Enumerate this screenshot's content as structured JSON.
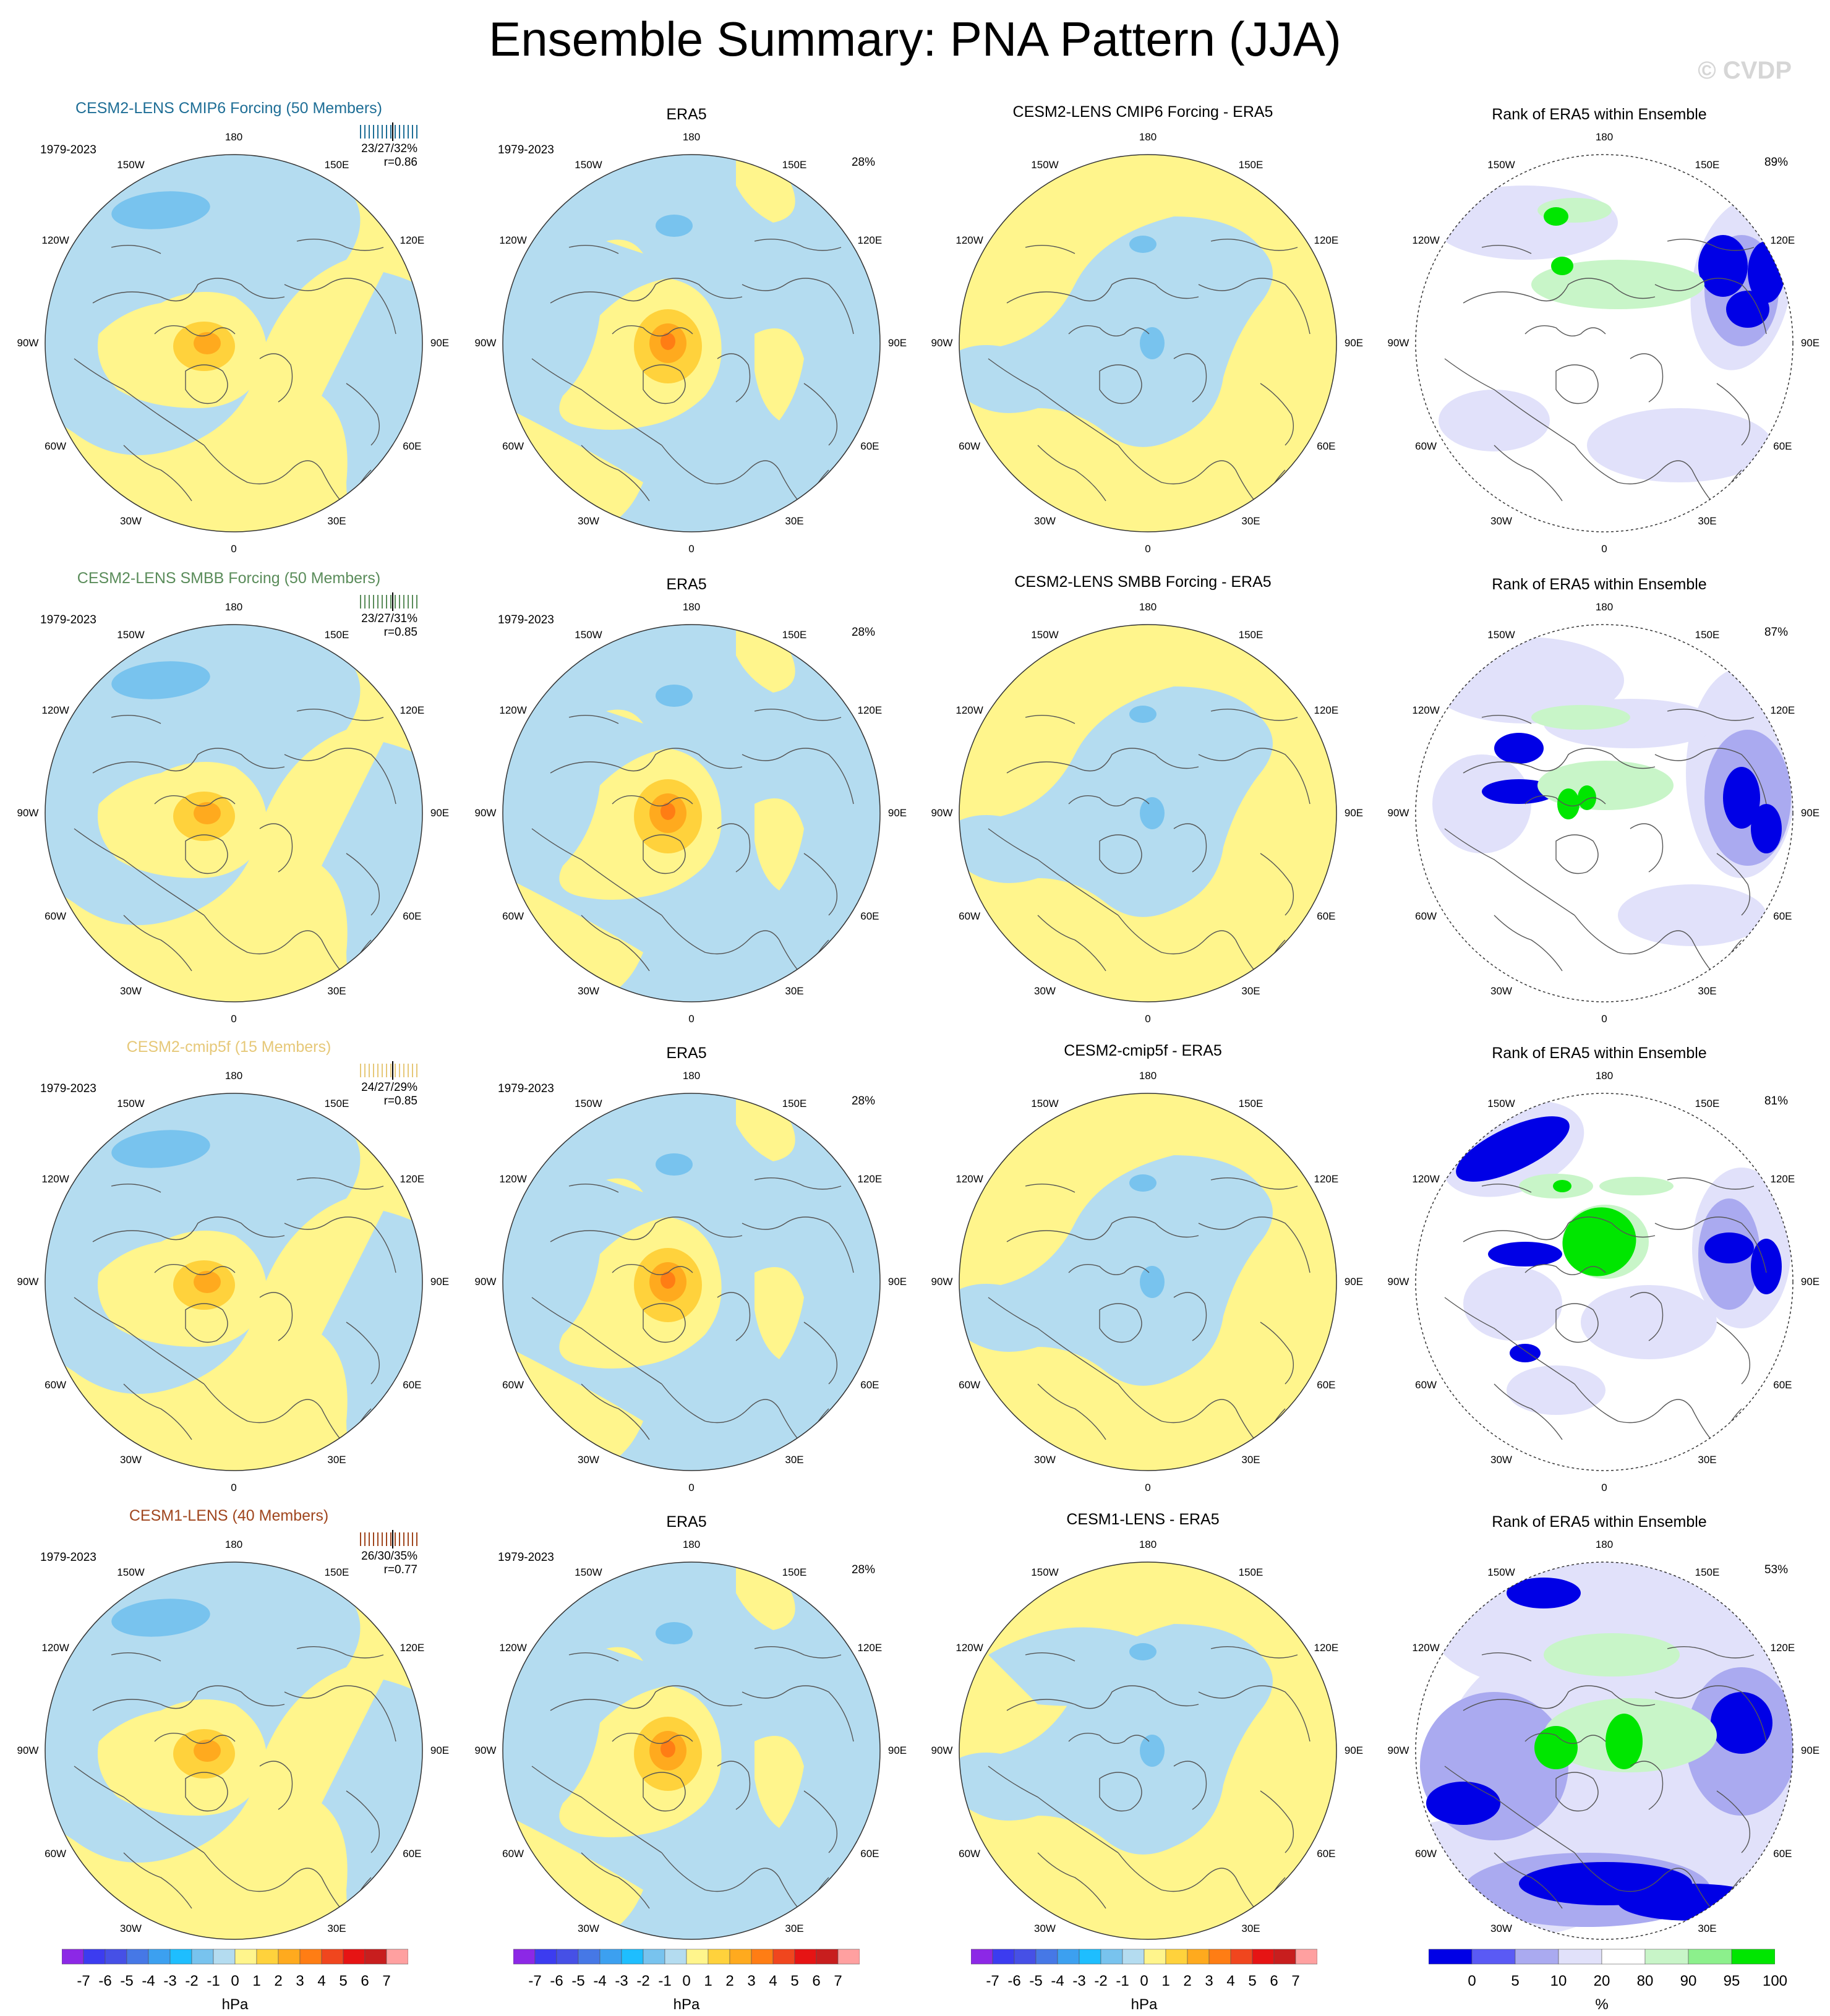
{
  "title": "Ensemble Summary: PNA Pattern (JJA)",
  "watermark": "© CVDP",
  "colors": {
    "yellow": "#fff58c",
    "lightblue": "#b4dcf0",
    "blue": "#78c3ee",
    "orange1": "#ffd23c",
    "orange2": "#ffaa1e",
    "orange3": "#ff7d14",
    "rank_white": "#ffffff",
    "rank_lav1": "#e1e1fa",
    "rank_lav2": "#aaaaf0",
    "rank_blue1": "#5a5af5",
    "rank_blue2": "#0000e6",
    "rank_green1": "#c8f5c8",
    "rank_green2": "#00e600"
  },
  "lon_labels": [
    "180",
    "150E",
    "120E",
    "90E",
    "60E",
    "30E",
    "0",
    "30W",
    "60W",
    "90W",
    "120W",
    "150W"
  ],
  "rows": [
    {
      "model_title": "CESM2-LENS CMIP6 Forcing (50 Members)",
      "model_color": "#1e6e96",
      "period": "1979-2023",
      "stats": "23/27/32%",
      "r": "r=0.86",
      "era_title": "ERA5",
      "era_period": "1979-2023",
      "era_pct": "28%",
      "diff_title": "CESM2-LENS CMIP6 Forcing - ERA5",
      "rank_title": "Rank of ERA5 within Ensemble",
      "rank_pct": "89%"
    },
    {
      "model_title": "CESM2-LENS SMBB Forcing (50 Members)",
      "model_color": "#5a8c5a",
      "period": "1979-2023",
      "stats": "23/27/31%",
      "r": "r=0.85",
      "era_title": "ERA5",
      "era_period": "1979-2023",
      "era_pct": "28%",
      "diff_title": "CESM2-LENS SMBB Forcing - ERA5",
      "rank_title": "Rank of ERA5 within Ensemble",
      "rank_pct": "87%"
    },
    {
      "model_title": "CESM2-cmip5f (15 Members)",
      "model_color": "#e6c878",
      "period": "1979-2023",
      "stats": "24/27/29%",
      "r": "r=0.85",
      "era_title": "ERA5",
      "era_period": "1979-2023",
      "era_pct": "28%",
      "diff_title": "CESM2-cmip5f - ERA5",
      "rank_title": "Rank of ERA5 within Ensemble",
      "rank_pct": "81%"
    },
    {
      "model_title": "CESM1-LENS (40 Members)",
      "model_color": "#a0461e",
      "period": "1979-2023",
      "stats": "26/30/35%",
      "r": "r=0.77",
      "era_title": "ERA5",
      "era_period": "1979-2023",
      "era_pct": "28%",
      "diff_title": "CESM1-LENS - ERA5",
      "rank_title": "Rank of ERA5 within Ensemble",
      "rank_pct": "53%"
    }
  ],
  "colorbar_hpa": {
    "ticks": [
      "-7",
      "-6",
      "-5",
      "-4",
      "-3",
      "-2",
      "-1",
      "0",
      "1",
      "2",
      "3",
      "4",
      "5",
      "6",
      "7"
    ],
    "unit": "hPa",
    "colors": [
      "#8c28e6",
      "#3c3cf0",
      "#4650e6",
      "#4678e6",
      "#3ca0f0",
      "#1ebeff",
      "#78c3ee",
      "#b4dcf0",
      "#fff58c",
      "#ffd23c",
      "#ffaa1e",
      "#ff7d14",
      "#f0461e",
      "#e61414",
      "#c81e1e",
      "#ffa0a0"
    ]
  },
  "colorbar_rank": {
    "ticks": [
      "0",
      "5",
      "10",
      "20",
      "80",
      "90",
      "95",
      "100"
    ],
    "unit": "%",
    "colors": [
      "#0000e6",
      "#5a5af5",
      "#aaaaf0",
      "#e1e1fa",
      "#ffffff",
      "#c8f5c8",
      "#8cf08c",
      "#00e600"
    ]
  }
}
